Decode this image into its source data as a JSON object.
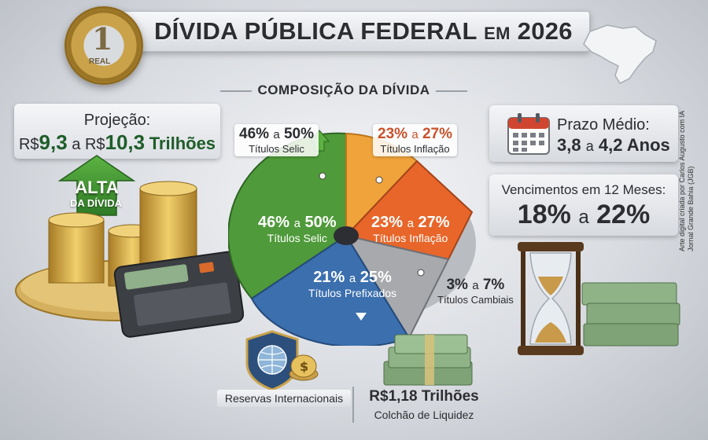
{
  "header": {
    "title_main": "DÍVIDA PÚBLICA FEDERAL",
    "title_em": "EM",
    "title_year": "2026",
    "coin_number": "1",
    "coin_text": "REAL"
  },
  "section_title": "COMPOSIÇÃO DA DÍVIDA",
  "projection": {
    "label": "Projeção:",
    "currency1": "R$",
    "value1": "9,3",
    "connector": "a",
    "currency2": "R$",
    "value2": "10,3",
    "unit": "Trilhões"
  },
  "alta": {
    "title": "ALTA",
    "subtitle": "DA DÍVIDA"
  },
  "composition": {
    "slices": [
      {
        "name": "Títulos Selic",
        "range_low": "46%",
        "range_high": "50%",
        "connector": "a",
        "color": "#4f9a3a"
      },
      {
        "name": "Títulos Inflação",
        "range_low": "23%",
        "range_high": "27%",
        "connector": "a",
        "color": "#f0a33a"
      },
      {
        "name": "Títulos Inflação",
        "range_low": "23%",
        "range_high": "27%",
        "connector": "a",
        "color": "#e8662a"
      },
      {
        "name": "Títulos Cambiais",
        "range_low": "3%",
        "range_high": "7%",
        "connector": "a",
        "color": "#a7a9ad"
      },
      {
        "name": "Títulos Prefixados",
        "range_low": "21%",
        "range_high": "25%",
        "connector": "a",
        "color": "#3b6fae"
      }
    ],
    "callout_selic": {
      "low": "46%",
      "connector": "a",
      "high": "50%",
      "name": "Títulos Selic"
    },
    "callout_inflacao": {
      "low": "23%",
      "connector": "a",
      "high": "27%",
      "name": "Títulos Inflação"
    },
    "inner_selic": {
      "low": "46%",
      "connector": "a",
      "high": "50%",
      "name": "Títulos Selic"
    },
    "inner_inflacao": {
      "low": "23%",
      "connector": "a",
      "high": "27%",
      "name": "Títulos Inflação"
    },
    "inner_prefixados": {
      "low": "21%",
      "connector": "a",
      "high": "25%",
      "name": "Títulos Prefixados"
    },
    "callout_cambiais": {
      "low": "3%",
      "connector": "a",
      "high": "7%",
      "name": "Títulos Cambiais"
    }
  },
  "prazo": {
    "label": "Prazo Médio:",
    "low": "3,8",
    "connector": "a",
    "high": "4,2",
    "unit": "Anos"
  },
  "vencimentos": {
    "label": "Vencimentos em 12 Meses:",
    "low": "18%",
    "connector": "a",
    "high": "22%"
  },
  "reservas": {
    "label": "Reservas Internacionais"
  },
  "liquidez": {
    "value": "R$1,18 Trilhões",
    "label": "Colchão de Liquidez"
  },
  "credit": {
    "line1": "Arte digital criada por Carlos Augusto com IA",
    "line2": "Jornal Grande Bahia (JGB)"
  },
  "colors": {
    "selic": "#4f9a3a",
    "inflacao_light": "#f0a33a",
    "inflacao_dark": "#e8662a",
    "cambiais": "#a7a9ad",
    "prefixados": "#3b6fae",
    "projection_green": "#1f5d29"
  }
}
